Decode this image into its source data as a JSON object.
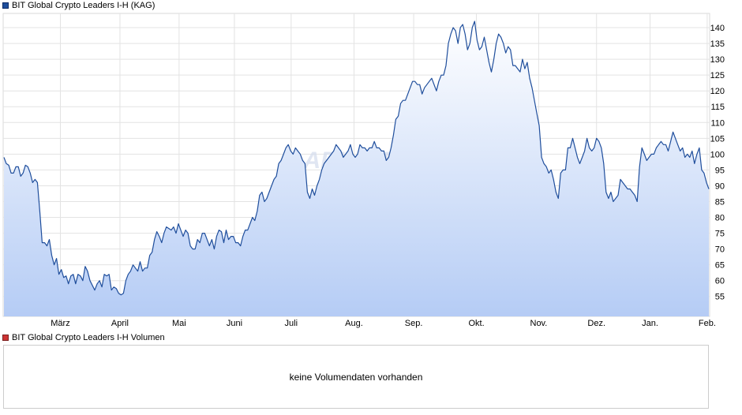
{
  "legend": {
    "main_label": "BIT Global Crypto Leaders I-H (KAG)",
    "main_color": "#1f4e9c",
    "volume_label": "BIT Global Crypto Leaders I-H Volumen",
    "volume_color": "#cc3333"
  },
  "watermark": "ARIVA.DE",
  "volume": {
    "message": "keine Volumendaten vorhanden"
  },
  "chart_data": {
    "type": "area",
    "series": [
      {
        "name": "BIT Global Crypto Leaders I-H (KAG)",
        "color": "#1f4e9c",
        "values": [
          99,
          97,
          96.5,
          94,
          94,
          96,
          96,
          93,
          94,
          96.5,
          96,
          94,
          91,
          92,
          91,
          82,
          72,
          72,
          71,
          73,
          68,
          65,
          67,
          62,
          63.5,
          61,
          61.5,
          59,
          61.5,
          62,
          59,
          62,
          61.5,
          60,
          64.5,
          63,
          60,
          58.5,
          57,
          59,
          60,
          58,
          62,
          61.5,
          62,
          57,
          58,
          57.5,
          56,
          55.5,
          56,
          60,
          62,
          63,
          65,
          64,
          63,
          66,
          63,
          64,
          64,
          68,
          69,
          73,
          75.5,
          74,
          72,
          75,
          77,
          76.5,
          76,
          77,
          75,
          78,
          76,
          74,
          76,
          75,
          71,
          70,
          70,
          73,
          72,
          75,
          75,
          73,
          71,
          73,
          70,
          74,
          76,
          75.5,
          72,
          76,
          73,
          74,
          74,
          72,
          72,
          71,
          74,
          76,
          76,
          78,
          80,
          79,
          82,
          87,
          88,
          85,
          86,
          88,
          90,
          92,
          93,
          97,
          98,
          100,
          102,
          103,
          101,
          100,
          102,
          101,
          100,
          98,
          97,
          88,
          86,
          89,
          87,
          90,
          92,
          95,
          97,
          98,
          99,
          100,
          101,
          103,
          102,
          101,
          99,
          100,
          101,
          103,
          100,
          99,
          100,
          103,
          102,
          102,
          101,
          102,
          102,
          104,
          102,
          102,
          101,
          101,
          98,
          99,
          102,
          106,
          111,
          112,
          116,
          117,
          117,
          119,
          121,
          123,
          123,
          122,
          122,
          119,
          121,
          122,
          123,
          124,
          122,
          120,
          123,
          125,
          125,
          128,
          135,
          138,
          140,
          139,
          135,
          140,
          141,
          138,
          133,
          135,
          140,
          142,
          136,
          133,
          134,
          137,
          133,
          129,
          126,
          130,
          135,
          138,
          137,
          135,
          132,
          134,
          133,
          128,
          128,
          127,
          126,
          130,
          127,
          129,
          124,
          121,
          117,
          113,
          109,
          99,
          97,
          96,
          94,
          95,
          92,
          88,
          86,
          94,
          95,
          95,
          102,
          102,
          105,
          102,
          99,
          97,
          99,
          101,
          105,
          102,
          101,
          102,
          105,
          104,
          102,
          97,
          88,
          86,
          88,
          85,
          86,
          87,
          92,
          91,
          90,
          89,
          89,
          88,
          87,
          85,
          96,
          102,
          100,
          98,
          99,
          100,
          100,
          102,
          103,
          104,
          103,
          103,
          101,
          104,
          107,
          105,
          103,
          101,
          102,
          99,
          100,
          99,
          101,
          97,
          100,
          102,
          95,
          94,
          91,
          89
        ]
      }
    ],
    "x_labels": [
      "März",
      "April",
      "Mai",
      "Juni",
      "Juli",
      "Aug.",
      "Sep.",
      "Okt.",
      "Nov.",
      "Dez.",
      "Jan.",
      "Feb."
    ],
    "x_label_positions": [
      0.081,
      0.1653,
      0.249,
      0.3273,
      0.4076,
      0.4966,
      0.5811,
      0.6699,
      0.758,
      0.8399,
      0.9157,
      0.9965
    ],
    "y_ticks": [
      55,
      60,
      65,
      70,
      75,
      80,
      85,
      90,
      95,
      100,
      105,
      110,
      115,
      120,
      125,
      130,
      135,
      140
    ],
    "ylim": [
      48.7,
      144.5
    ],
    "grid": true,
    "fill_color": "#b5ccf5"
  }
}
